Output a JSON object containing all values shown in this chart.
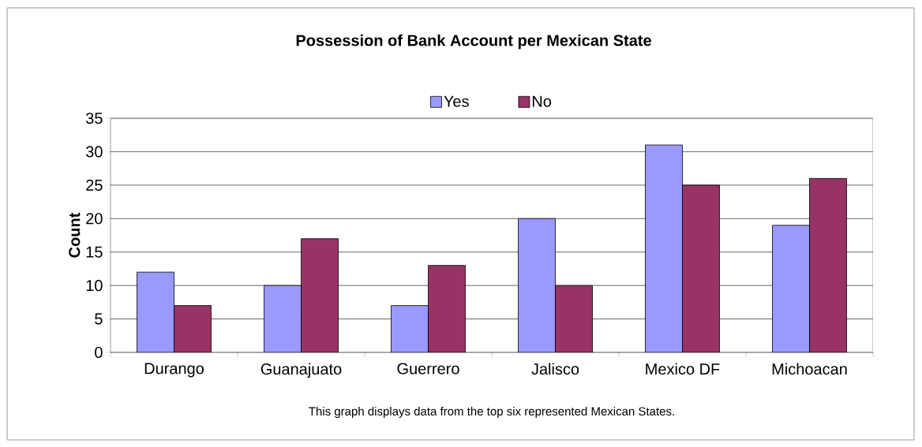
{
  "chart_data": {
    "type": "bar",
    "title": "Possession of Bank Account per Mexican State",
    "ylabel": "Count",
    "categories": [
      "Durango",
      "Guanajuato",
      "Guerrero",
      "Jalisco",
      "Mexico DF",
      "Michoacan"
    ],
    "series": [
      {
        "name": "Yes",
        "color": "#9999ff",
        "values": [
          12,
          10,
          7,
          20,
          31,
          19
        ]
      },
      {
        "name": "No",
        "color": "#993366",
        "values": [
          7,
          17,
          13,
          10,
          25,
          26
        ]
      }
    ],
    "ylim": [
      0,
      35
    ],
    "yticks": [
      0,
      5,
      10,
      15,
      20,
      25,
      30,
      35
    ],
    "grid": "y",
    "legend": "top",
    "annotations": [
      "This graph displays data from the top six represented Mexican States."
    ]
  }
}
